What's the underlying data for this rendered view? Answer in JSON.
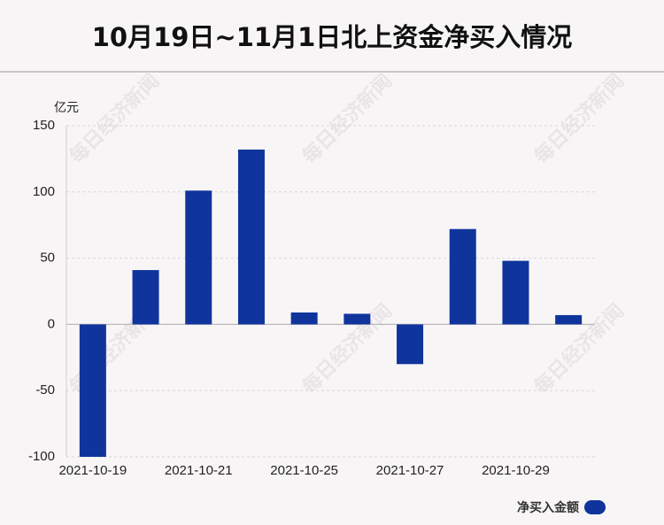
{
  "chart_data": {
    "type": "bar",
    "title": "10月19日~11月1日北上资金净买入情况",
    "unit": "亿元",
    "tick_labels_x": [
      "2021-10-19",
      "2021-10-21",
      "2021-10-25",
      "2021-10-27",
      "2021-10-29"
    ],
    "tick_indices_x": [
      0,
      2,
      4,
      6,
      8
    ],
    "series": [
      {
        "name": "净买入金额",
        "values": [
          -100,
          41,
          101,
          132,
          9,
          8,
          -30,
          72,
          48,
          7
        ]
      }
    ],
    "ylim": [
      -100,
      150
    ],
    "yticks": [
      150,
      100,
      50,
      0,
      -50,
      -100
    ],
    "grid": true,
    "legend_position": "bottom-right",
    "colors": {
      "bar": "#0f349c",
      "grid": "#d9d5d8",
      "axis": "#999999"
    }
  },
  "watermark": "每日经济新闻"
}
